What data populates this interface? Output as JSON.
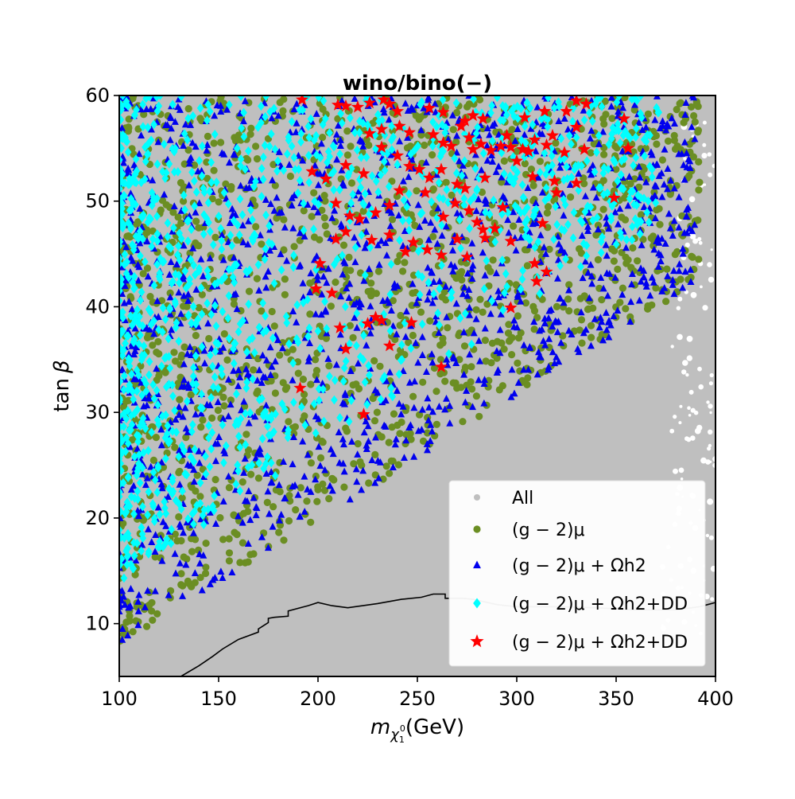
{
  "chart_data": {
    "type": "scatter",
    "title": "wino/bino(−)",
    "xlabel": {
      "main": "m",
      "sub": "χ",
      "subsub": "1",
      "sup": "0",
      "unit": "(GeV)"
    },
    "ylabel": {
      "main": "tan",
      "greek": "β"
    },
    "xlim": [
      100,
      400
    ],
    "ylim": [
      5,
      60
    ],
    "xticks": [
      100,
      150,
      200,
      250,
      300,
      350,
      400
    ],
    "yticks": [
      10,
      20,
      30,
      40,
      50,
      60
    ],
    "grid": false,
    "legend_position": "lower-right",
    "series": [
      {
        "name": "All",
        "marker": "circle",
        "color": "#bfbfbf",
        "description": "Fills the region above the boundary curve"
      },
      {
        "name": "(g − 2)μ",
        "marker": "circle",
        "color": "#6b8e23"
      },
      {
        "name": "(g − 2)μ + Ωh2",
        "marker": "triangle",
        "color": "#0000ee"
      },
      {
        "name": "(g − 2)μ + Ωh2+DD",
        "marker": "diamond",
        "color": "#00ffff"
      },
      {
        "name": "(g − 2)μ + Ωh2+DD",
        "marker": "star",
        "color": "#ff0000",
        "points": [
          [
            192,
            59.6
          ],
          [
            210,
            59.1
          ],
          [
            214,
            59.0
          ],
          [
            220,
            58.9
          ],
          [
            226,
            59.3
          ],
          [
            233,
            59.6
          ],
          [
            236,
            59.2
          ],
          [
            240,
            58.5
          ],
          [
            256,
            58.8
          ],
          [
            263,
            58.4
          ],
          [
            274,
            57.6
          ],
          [
            278,
            58.1
          ],
          [
            283,
            57.8
          ],
          [
            304,
            57.9
          ],
          [
            314,
            58.5
          ],
          [
            325,
            58.5
          ],
          [
            330,
            59.5
          ],
          [
            335,
            59.2
          ],
          [
            354,
            57.8
          ],
          [
            226,
            56.4
          ],
          [
            232,
            56.8
          ],
          [
            241,
            57.1
          ],
          [
            246,
            56.5
          ],
          [
            258,
            56.3
          ],
          [
            263,
            55.5
          ],
          [
            267,
            55.2
          ],
          [
            272,
            57.1
          ],
          [
            276,
            56.0
          ],
          [
            278,
            54.9
          ],
          [
            282,
            55.4
          ],
          [
            287,
            54.8
          ],
          [
            292,
            55.2
          ],
          [
            295,
            56.2
          ],
          [
            297,
            55.1
          ],
          [
            303,
            54.9
          ],
          [
            306,
            54.7
          ],
          [
            309,
            55.8
          ],
          [
            315,
            55.3
          ],
          [
            318,
            56.2
          ],
          [
            324,
            54.6
          ],
          [
            330,
            57.0
          ],
          [
            334,
            54.9
          ],
          [
            356,
            55.0
          ],
          [
            197,
            52.8
          ],
          [
            204,
            52.1
          ],
          [
            214,
            53.4
          ],
          [
            223,
            52.6
          ],
          [
            232,
            55.1
          ],
          [
            240,
            54.3
          ],
          [
            246,
            53.3
          ],
          [
            251,
            53.0
          ],
          [
            256,
            52.2
          ],
          [
            262,
            53.0
          ],
          [
            270,
            51.6
          ],
          [
            274,
            51.2
          ],
          [
            284,
            52.2
          ],
          [
            300,
            53.8
          ],
          [
            308,
            52.3
          ],
          [
            319,
            51.9
          ],
          [
            330,
            51.7
          ],
          [
            349,
            50.3
          ],
          [
            209,
            49.8
          ],
          [
            216,
            48.6
          ],
          [
            221,
            48.3
          ],
          [
            229,
            48.9
          ],
          [
            236,
            49.6
          ],
          [
            241,
            51.0
          ],
          [
            254,
            50.8
          ],
          [
            263,
            48.5
          ],
          [
            269,
            49.8
          ],
          [
            276,
            49.1
          ],
          [
            280,
            48.0
          ],
          [
            284,
            46.5
          ],
          [
            293,
            49.4
          ],
          [
            313,
            47.9
          ],
          [
            320,
            50.8
          ],
          [
            201,
            44.1
          ],
          [
            209,
            46.4
          ],
          [
            214,
            47.1
          ],
          [
            227,
            46.3
          ],
          [
            236,
            46.8
          ],
          [
            244,
            45.2
          ],
          [
            248,
            46.1
          ],
          [
            255,
            45.4
          ],
          [
            262,
            44.9
          ],
          [
            270,
            46.4
          ],
          [
            275,
            44.7
          ],
          [
            283,
            47.3
          ],
          [
            289,
            47.4
          ],
          [
            297,
            46.2
          ],
          [
            310,
            42.4
          ],
          [
            309,
            44.1
          ],
          [
            315,
            43.3
          ],
          [
            199,
            41.7
          ],
          [
            207,
            41.3
          ],
          [
            211,
            38.0
          ],
          [
            214,
            36.0
          ],
          [
            225,
            38.4
          ],
          [
            229,
            39.0
          ],
          [
            232,
            38.7
          ],
          [
            236,
            36.3
          ],
          [
            247,
            38.5
          ],
          [
            262,
            34.3
          ],
          [
            297,
            39.9
          ],
          [
            191,
            32.3
          ],
          [
            223,
            29.8
          ]
        ]
      }
    ],
    "boundary_curve": [
      [
        131,
        5
      ],
      [
        140,
        6
      ],
      [
        147,
        6.9
      ],
      [
        152,
        7.6
      ],
      [
        160,
        8.5
      ],
      [
        170,
        9.2
      ],
      [
        170,
        9.5
      ],
      [
        175,
        10.1
      ],
      [
        175,
        10.5
      ],
      [
        178,
        10.6
      ],
      [
        185,
        10.7
      ],
      [
        185,
        11.2
      ],
      [
        195,
        11.7
      ],
      [
        200,
        12.0
      ],
      [
        207,
        11.7
      ],
      [
        215,
        11.5
      ],
      [
        230,
        11.9
      ],
      [
        242,
        12.3
      ],
      [
        252,
        12.5
      ],
      [
        258,
        12.8
      ],
      [
        264,
        12.8
      ],
      [
        264,
        12.4
      ],
      [
        273,
        12.4
      ],
      [
        278,
        12.3
      ],
      [
        290,
        11.8
      ],
      [
        300,
        11.6
      ],
      [
        320,
        11.6
      ],
      [
        340,
        11.5
      ],
      [
        360,
        11.3
      ],
      [
        380,
        11.3
      ],
      [
        392,
        11.6
      ],
      [
        400,
        12.0
      ]
    ]
  }
}
